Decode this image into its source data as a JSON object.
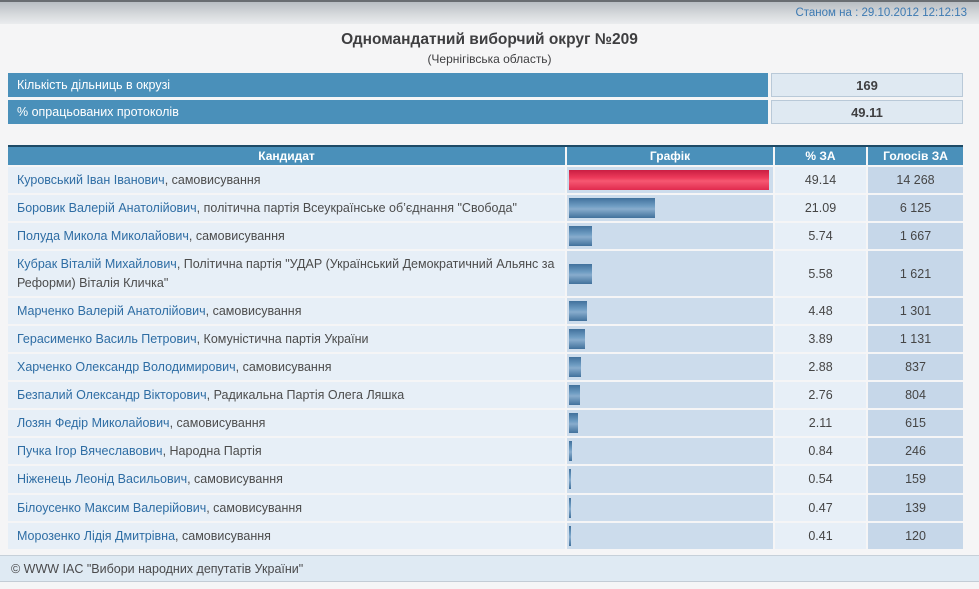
{
  "topbar": {
    "status_label": "Станом на : 29.10.2012 12:12:13"
  },
  "header": {
    "title": "Одномандатний виборчий округ №209",
    "subtitle": "(Чернігівська область)"
  },
  "summary": {
    "rows": [
      {
        "label": "Кількість дільниць в окрузі",
        "value": "169"
      },
      {
        "label": "% опрацьованих протоколів",
        "value": "49.11"
      }
    ]
  },
  "results_table": {
    "columns": [
      "Кандидат",
      "Графік",
      "% ЗА",
      "Голосів ЗА"
    ],
    "rows": [
      {
        "name": "Куровський Іван Іванович",
        "affiliation": ", самовисування",
        "percent": "49.14",
        "votes": "14 268",
        "bar": "red"
      },
      {
        "name": "Боровик Валерій Анатолійович",
        "affiliation": ", політична партія Всеукраїнське об’єднання \"Свобода\"",
        "percent": "21.09",
        "votes": "6 125",
        "bar": "blue"
      },
      {
        "name": "Полуда Микола Миколайович",
        "affiliation": ", самовисування",
        "percent": "5.74",
        "votes": "1 667",
        "bar": "blue"
      },
      {
        "name": "Кубрак Віталій Михайлович",
        "affiliation": ", Політична партія \"УДАР (Український Демократичний Альянс за Реформи) Віталія Кличка\"",
        "percent": "5.58",
        "votes": "1 621",
        "bar": "blue"
      },
      {
        "name": "Марченко Валерій Анатолійович",
        "affiliation": ", самовисування",
        "percent": "4.48",
        "votes": "1 301",
        "bar": "blue"
      },
      {
        "name": "Герасименко Василь Петрович",
        "affiliation": ", Комуністична партія України",
        "percent": "3.89",
        "votes": "1 131",
        "bar": "blue"
      },
      {
        "name": "Харченко Олександр Володимирович",
        "affiliation": ", самовисування",
        "percent": "2.88",
        "votes": "837",
        "bar": "blue"
      },
      {
        "name": "Безпалий Олександр Вікторович",
        "affiliation": ", Радикальна Партія Олега Ляшка",
        "percent": "2.76",
        "votes": "804",
        "bar": "blue"
      },
      {
        "name": "Лозян Федір Миколайович",
        "affiliation": ", самовисування",
        "percent": "2.11",
        "votes": "615",
        "bar": "blue"
      },
      {
        "name": "Пучка Ігор Вячеславович",
        "affiliation": ", Народна Партія",
        "percent": "0.84",
        "votes": "246",
        "bar": "blue"
      },
      {
        "name": "Ніженець Леонід Васильович",
        "affiliation": ", самовисування",
        "percent": "0.54",
        "votes": "159",
        "bar": "blue"
      },
      {
        "name": "Білоусенко Максим Валерійович",
        "affiliation": ", самовисування",
        "percent": "0.47",
        "votes": "139",
        "bar": "blue"
      },
      {
        "name": "Морозенко Лідія Дмитрівна",
        "affiliation": ", самовисування",
        "percent": "0.41",
        "votes": "120",
        "bar": "blue"
      }
    ]
  },
  "footer": {
    "copyright": "© WWW IAC \"Вибори народних депутатів України\""
  },
  "colors": {
    "header_blue": "#4a90ba",
    "bar_red": "#ee3c5c",
    "bar_blue": "#5d8cb5",
    "graph_cell_bg": "#ccdcec",
    "votes_cell_bg": "#c6d7e9",
    "link_blue": "#2e6da4",
    "status_text_blue": "#3d7ab2"
  }
}
